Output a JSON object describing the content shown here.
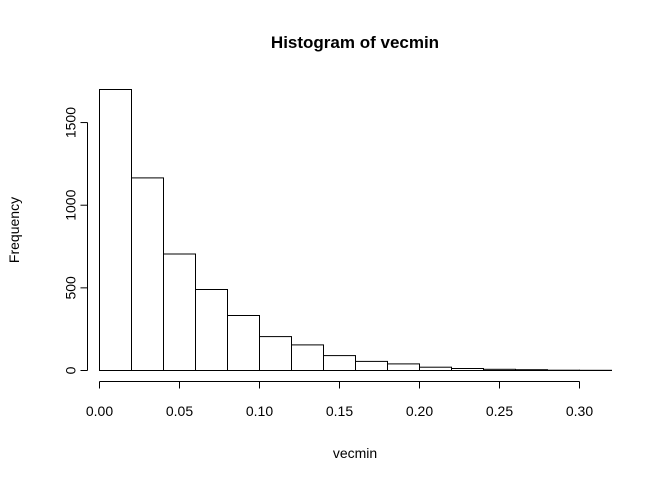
{
  "chart_data": {
    "type": "bar",
    "title": "Histogram of vecmin",
    "xlabel": "vecmin",
    "ylabel": "Frequency",
    "bin_edges": [
      0.0,
      0.02,
      0.04,
      0.06,
      0.08,
      0.1,
      0.12,
      0.14,
      0.16,
      0.18,
      0.2,
      0.22,
      0.24,
      0.26,
      0.28,
      0.3,
      0.32
    ],
    "values": [
      1700,
      1165,
      705,
      490,
      333,
      205,
      155,
      90,
      55,
      40,
      20,
      12,
      7,
      5,
      2,
      1
    ],
    "xlim": [
      0.0,
      0.32
    ],
    "ylim": [
      0,
      1700
    ],
    "x_ticks": [
      0.0,
      0.05,
      0.1,
      0.15,
      0.2,
      0.25,
      0.3
    ],
    "x_tick_labels": [
      "0.00",
      "0.05",
      "0.10",
      "0.15",
      "0.20",
      "0.25",
      "0.30"
    ],
    "y_ticks": [
      0,
      500,
      1000,
      1500
    ],
    "y_tick_labels": [
      "0",
      "500",
      "1000",
      "1500"
    ],
    "grid": false,
    "legend": "none"
  }
}
